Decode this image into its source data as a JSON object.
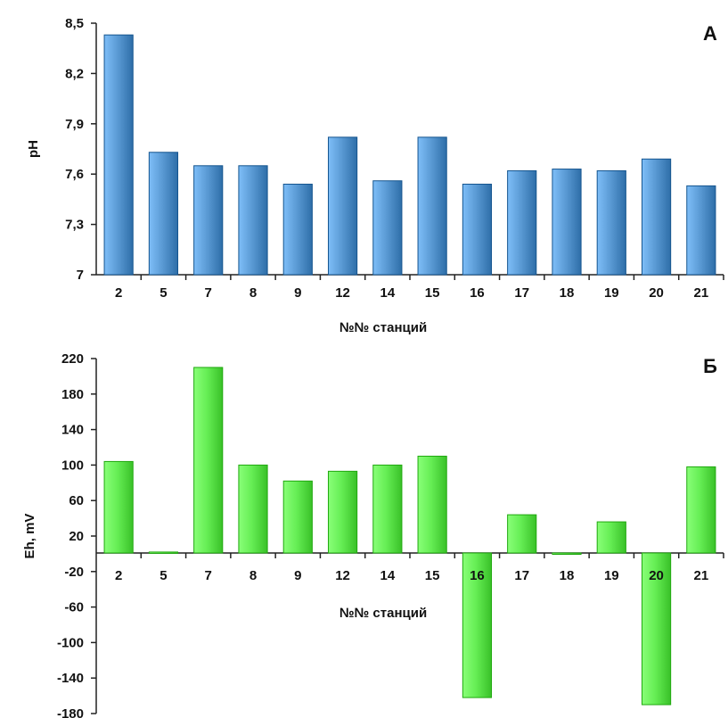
{
  "chart_data": [
    {
      "type": "bar",
      "panel_label": "A",
      "ylabel": "pH",
      "xlabel": "№№ станций",
      "categories": [
        "2",
        "5",
        "7",
        "8",
        "9",
        "12",
        "14",
        "15",
        "16",
        "17",
        "18",
        "19",
        "20",
        "21"
      ],
      "values": [
        8.43,
        7.73,
        7.65,
        7.65,
        7.54,
        7.82,
        7.56,
        7.82,
        7.54,
        7.62,
        7.63,
        7.62,
        7.69,
        7.53
      ],
      "ylim": [
        7,
        8.5
      ],
      "yticks": [
        "7",
        "7,3",
        "7,6",
        "7,9",
        "8,2",
        "8,5"
      ],
      "ytick_values": [
        7,
        7.3,
        7.6,
        7.9,
        8.2,
        8.5
      ],
      "bar_color": "#5b9bd5",
      "grid": false
    },
    {
      "type": "bar",
      "panel_label": "Б",
      "ylabel": "Eh, mV",
      "xlabel": "№№ станций",
      "categories": [
        "2",
        "5",
        "7",
        "8",
        "9",
        "12",
        "14",
        "15",
        "16",
        "17",
        "18",
        "19",
        "20",
        "21"
      ],
      "values": [
        104,
        2,
        210,
        100,
        82,
        93,
        100,
        110,
        -162,
        44,
        0,
        36,
        -170,
        98
      ],
      "ylim": [
        -180,
        220
      ],
      "yticks": [
        "220",
        "180",
        "140",
        "100",
        "60",
        "20",
        "-20",
        "-60",
        "-100",
        "-140",
        "-180"
      ],
      "ytick_values": [
        220,
        180,
        140,
        100,
        60,
        20,
        -20,
        -60,
        -100,
        -140,
        -180
      ],
      "bar_color": "#66ee55",
      "grid": false
    }
  ]
}
